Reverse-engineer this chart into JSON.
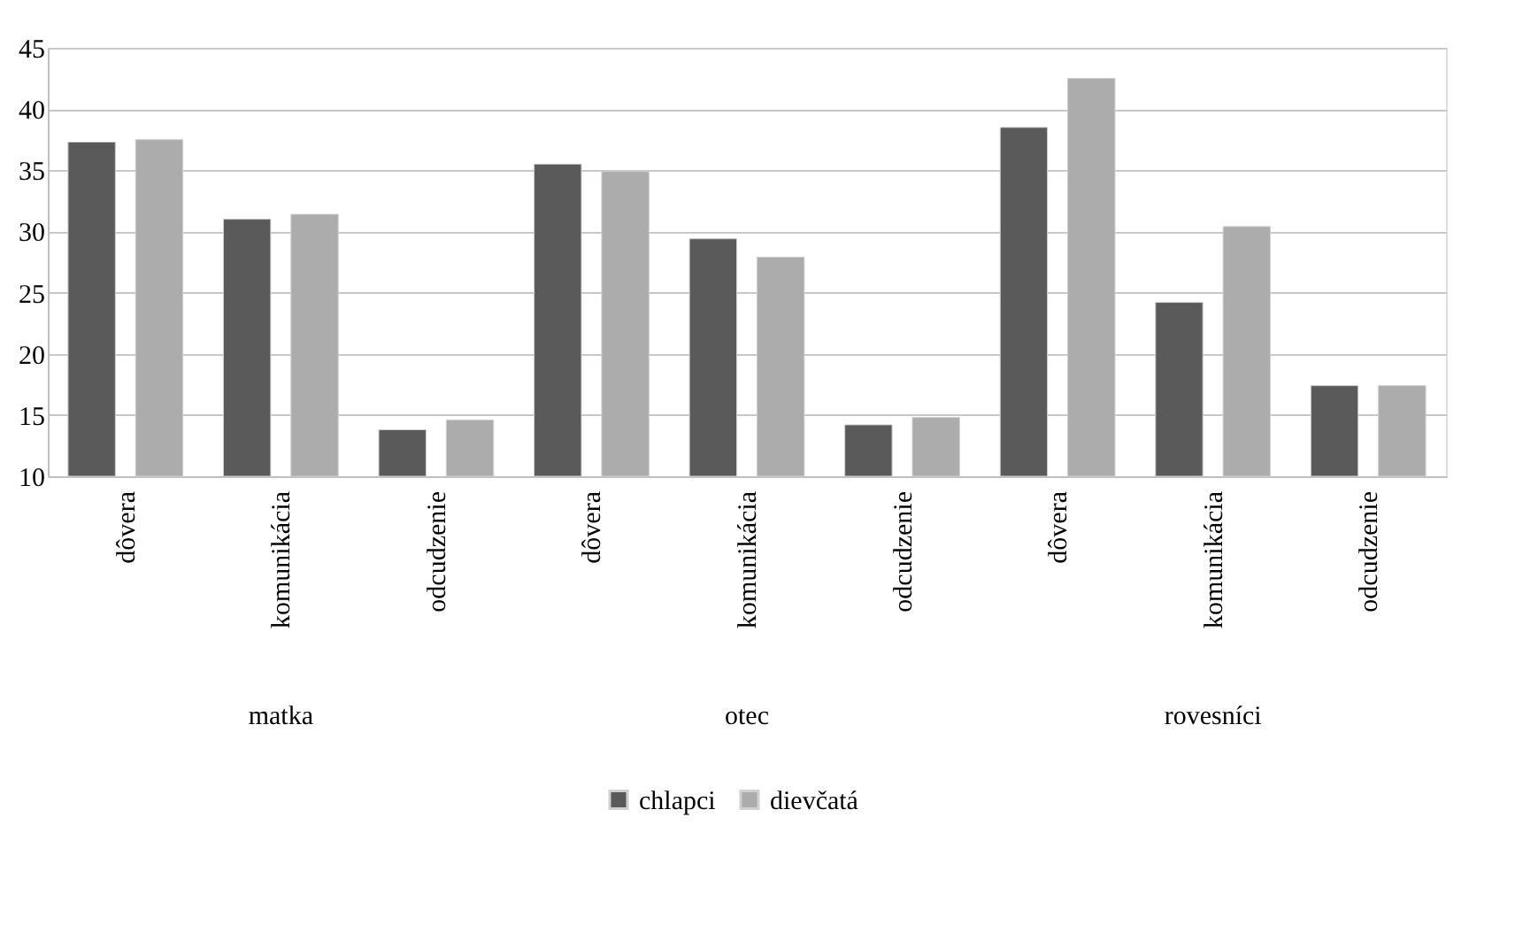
{
  "chart_data": {
    "type": "bar",
    "categories": [
      "dôvera",
      "komunikácia",
      "odcudzenie",
      "dôvera",
      "komunikácia",
      "odcudzenie",
      "dôvera",
      "komunikácia",
      "odcudzenie"
    ],
    "series": [
      {
        "name": "chlapci",
        "color": "#5a5a5a",
        "values": [
          37.3,
          31.0,
          13.8,
          35.5,
          29.4,
          14.2,
          38.5,
          24.2,
          17.4
        ]
      },
      {
        "name": "dievčatá",
        "color": "#acacac",
        "values": [
          37.5,
          31.4,
          14.6,
          34.9,
          27.9,
          14.8,
          42.5,
          30.4,
          17.4
        ]
      }
    ],
    "annotations": [
      "matka",
      "otec",
      "rovesníci"
    ],
    "ylim": [
      10,
      45
    ],
    "yticks": [
      10,
      15,
      20,
      25,
      30,
      35,
      40,
      45
    ],
    "grid": "y",
    "legend": "bottom"
  }
}
